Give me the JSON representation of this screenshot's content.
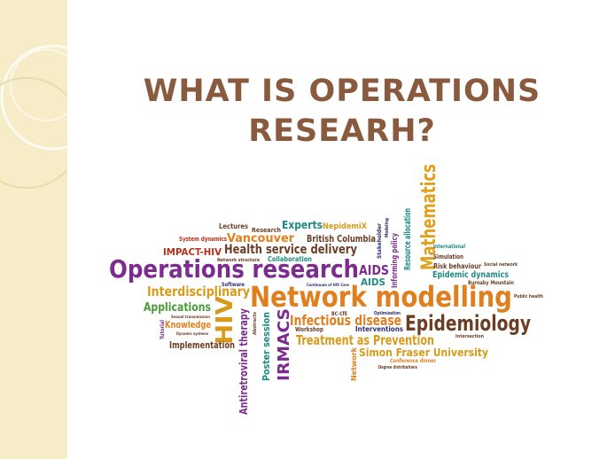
{
  "slide": {
    "title_line1": "WHAT IS OPERATIONS",
    "title_line2": "RESEARH?"
  },
  "colors": {
    "sidebar_background": "#f6ecc7",
    "title": "#8a5a3e",
    "purple": "#7b2c8e",
    "orange": "#e07f1e",
    "teal": "#1f8a85",
    "green": "#4a9a3a",
    "gold": "#d89a18",
    "red": "#b5311c",
    "brown": "#6a3d24",
    "navy": "#2b2f6b"
  },
  "word_cloud": [
    {
      "text": "Network modelling",
      "color": "#e07f1e"
    },
    {
      "text": "Operations research",
      "color": "#7b2c8e"
    },
    {
      "text": "Epidemiology",
      "color": "#6a3d24"
    },
    {
      "text": "Mathematics",
      "color": "#e0a01e"
    },
    {
      "text": "HIV",
      "color": "#d89a18"
    },
    {
      "text": "IRMACS",
      "color": "#7b2c8e"
    },
    {
      "text": "Infectious disease",
      "color": "#e07f1e"
    },
    {
      "text": "Treatment as Prevention",
      "color": "#d89a18"
    },
    {
      "text": "Health service delivery",
      "color": "#6a3d24"
    },
    {
      "text": "Vancouver",
      "color": "#e07f1e"
    },
    {
      "text": "Interdisciplinary",
      "color": "#d89a18"
    },
    {
      "text": "Applications",
      "color": "#4a9a3a"
    },
    {
      "text": "Knowledge",
      "color": "#e07f1e"
    },
    {
      "text": "Implementation",
      "color": "#6a3d24"
    },
    {
      "text": "Antiretroviral therapy",
      "color": "#7b2c8e"
    },
    {
      "text": "Poster session",
      "color": "#1f8a85"
    },
    {
      "text": "Simon Fraser University",
      "color": "#d89a18"
    },
    {
      "text": "AIDS",
      "color": "#7b2c8e"
    },
    {
      "text": "AIDS",
      "color": "#1f8a85"
    },
    {
      "text": "IMPACT-HIV",
      "color": "#b5311c"
    },
    {
      "text": "British Columbia",
      "color": "#6a3d24"
    },
    {
      "text": "Experts",
      "color": "#1f8a85"
    },
    {
      "text": "NepidemiX",
      "color": "#d89a18"
    },
    {
      "text": "Lectures",
      "color": "#6a3d24"
    },
    {
      "text": "Research",
      "color": "#6a3d24"
    },
    {
      "text": "System dynamics",
      "color": "#b5311c"
    },
    {
      "text": "Network structure",
      "color": "#6a3d24"
    },
    {
      "text": "Collaboration",
      "color": "#1f8a85"
    },
    {
      "text": "Resource allocation",
      "color": "#1f8a85"
    },
    {
      "text": "Informing policy",
      "color": "#7b2c8e"
    },
    {
      "text": "Stakeholder",
      "color": "#2b2f6b"
    },
    {
      "text": "Modeling",
      "color": "#2b2f6b"
    },
    {
      "text": "International",
      "color": "#1f8a85"
    },
    {
      "text": "Simulation",
      "color": "#6a3d24"
    },
    {
      "text": "Risk behaviour",
      "color": "#6a3d24"
    },
    {
      "text": "Social network",
      "color": "#6a3d24"
    },
    {
      "text": "Epidemic dynamics",
      "color": "#1f8a85"
    },
    {
      "text": "Burnaby Mountain",
      "color": "#6a3d24"
    },
    {
      "text": "Public health",
      "color": "#6a3d24"
    },
    {
      "text": "Continuum of HIV Care",
      "color": "#2b2f6b"
    },
    {
      "text": "BC-CfE",
      "color": "#6a3d24"
    },
    {
      "text": "Optimization",
      "color": "#2b2f6b"
    },
    {
      "text": "Interventions",
      "color": "#2b2f6b"
    },
    {
      "text": "Workshop",
      "color": "#6a3d24"
    },
    {
      "text": "Intersection",
      "color": "#6a3d24"
    },
    {
      "text": "Conference dinner",
      "color": "#e07f1e"
    },
    {
      "text": "Degree distributions",
      "color": "#6a3d24"
    },
    {
      "text": "Network",
      "color": "#e07f1e"
    },
    {
      "text": "Software",
      "color": "#2b2f6b"
    },
    {
      "text": "Abstracts",
      "color": "#6a3d24"
    },
    {
      "text": "Sexual transmission",
      "color": "#6a3d24"
    },
    {
      "text": "Dynamic systems",
      "color": "#6a3d24"
    },
    {
      "text": "Tutorial",
      "color": "#7b2c8e"
    }
  ]
}
